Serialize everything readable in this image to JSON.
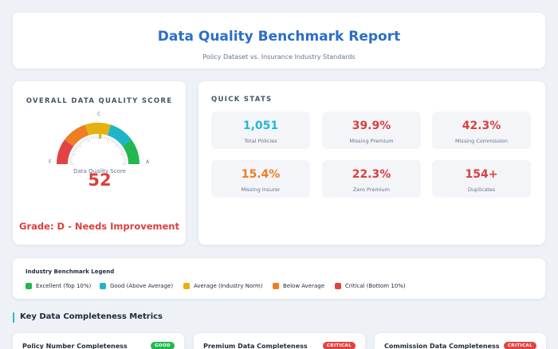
{
  "header": {
    "title": "Data Quality Benchmark Report",
    "subtitle": "Policy Dataset vs. Insurance Industry Standards"
  },
  "score": {
    "heading": "OVERALL DATA QUALITY SCORE",
    "gauge_labels": {
      "low": "F",
      "mid": "C",
      "high": "A"
    },
    "caption": "Data Quality Score",
    "value": "52",
    "value_fraction": 0.52,
    "grade": "Grade: D - Needs Improvement",
    "value_color": "#dc3f3f"
  },
  "stats": {
    "heading": "QUICK STATS",
    "items": [
      {
        "value": "1,051",
        "label": "Total Policies",
        "color": "#22b8d6"
      },
      {
        "value": "39.9%",
        "label": "Missing Premium",
        "color": "#dc3f3f"
      },
      {
        "value": "42.3%",
        "label": "Missing Commission",
        "color": "#dc3f3f"
      },
      {
        "value": "15.4%",
        "label": "Missing Insurer",
        "color": "#ef7d22"
      },
      {
        "value": "22.3%",
        "label": "Zero Premium",
        "color": "#dc3f3f"
      },
      {
        "value": "154+",
        "label": "Duplicates",
        "color": "#dc3f3f"
      }
    ]
  },
  "legend": {
    "title": "Industry Benchmark Legend",
    "items": [
      {
        "label": "Excellent (Top 10%)",
        "color": "#22b84f"
      },
      {
        "label": "Good (Above Average)",
        "color": "#1fb5c9"
      },
      {
        "label": "Average (Industry Norm)",
        "color": "#e5b10f"
      },
      {
        "label": "Below Average",
        "color": "#ef7d22"
      },
      {
        "label": "Critical (Bottom 10%)",
        "color": "#e04343"
      }
    ]
  },
  "metrics": {
    "section_title": "Key Data Completeness Metrics",
    "cards": [
      {
        "title": "Policy Number Completeness",
        "badge": "GOOD",
        "badge_color": "#22b84f"
      },
      {
        "title": "Premium Data Completeness",
        "badge": "CRITICAL",
        "badge_color": "#e04343"
      },
      {
        "title": "Commission Data Completeness",
        "badge": "CRITICAL",
        "badge_color": "#e04343"
      }
    ]
  }
}
